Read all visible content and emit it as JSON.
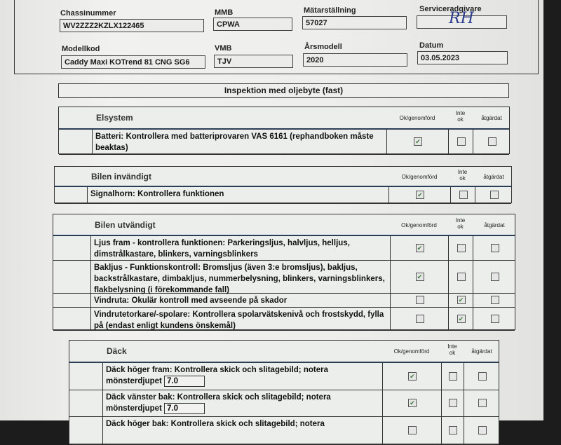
{
  "header": {
    "chassis_label": "Chassinummer",
    "chassis_value": "WV2ZZZ2KZLX122465",
    "mmb_label": "MMB",
    "mmb_value": "CPWA",
    "odometer_label": "Mätarställning",
    "odometer_value": "57027",
    "advisor_label": "Serviceradgivare",
    "advisor_signature": "RH",
    "model_code_label": "Modellkod",
    "model_code_value": "Caddy Maxi KOTrend 81 CNG SG6",
    "vmb_label": "VMB",
    "vmb_value": "TJV",
    "model_year_label": "Årsmodell",
    "model_year_value": "2020",
    "date_label": "Datum",
    "date_value": "03.05.2023"
  },
  "inspection_title": "Inspektion med oljebyte (fast)",
  "columns": {
    "ok": "Ok/genomförd",
    "not_ok_1": "Inte",
    "not_ok_2": "ok",
    "fixed": "åtgärdat"
  },
  "sections": [
    {
      "title": "Elsystem",
      "items": [
        {
          "text": "Batteri: Kontrollera med batteriprovaren VAS 6161 (rephandboken måste beaktas)",
          "ok": true,
          "not_ok": false,
          "fixed": false
        }
      ]
    },
    {
      "title": "Bilen invändigt",
      "items": [
        {
          "text": "Signalhorn: Kontrollera funktionen",
          "ok": true,
          "not_ok": false,
          "fixed": false
        }
      ]
    },
    {
      "title": "Bilen utvändigt",
      "items": [
        {
          "text": "Ljus fram - kontrollera funktionen: Parkeringsljus, halvljus, helljus, dimstrålkastare, blinkers, varningsblinkers",
          "ok": true,
          "not_ok": false,
          "fixed": false
        },
        {
          "text": "Bakljus - Funktionskontroll: Bromsljus (även 3:e bromsljus), bakljus, backstrålkastare, dimbakljus, nummerbelysning, blinkers, varningsblinkers, flakbelysning (i förekommande fall)",
          "ok": true,
          "not_ok": false,
          "fixed": false
        },
        {
          "text": "Vindruta: Okulär kontroll med avseende på skador",
          "ok": false,
          "not_ok": true,
          "fixed": false
        },
        {
          "text": "Vindrutetorkare/-spolare: Kontrollera spolarvätskenivå och frostskydd, fylla på (endast enligt kundens önskemål)",
          "ok": false,
          "not_ok": true,
          "fixed": false
        }
      ]
    },
    {
      "title": "Däck",
      "items": [
        {
          "text": "Däck höger fram: Kontrollera skick och slitagebild; notera",
          "depth_label": "mönsterdjupet",
          "depth": "7.0",
          "ok": true,
          "not_ok": false,
          "fixed": false
        },
        {
          "text": "Däck vänster bak: Kontrollera skick och slitagebild; notera",
          "depth_label": "mönsterdjupet",
          "depth": "7.0",
          "ok": true,
          "not_ok": false,
          "fixed": false
        },
        {
          "text": "Däck höger bak: Kontrollera skick och slitagebild; notera",
          "ok": false,
          "not_ok": false,
          "fixed": false
        }
      ]
    }
  ],
  "colors": {
    "check": "#3a7a3a",
    "header_rule": "#2a3d55"
  }
}
